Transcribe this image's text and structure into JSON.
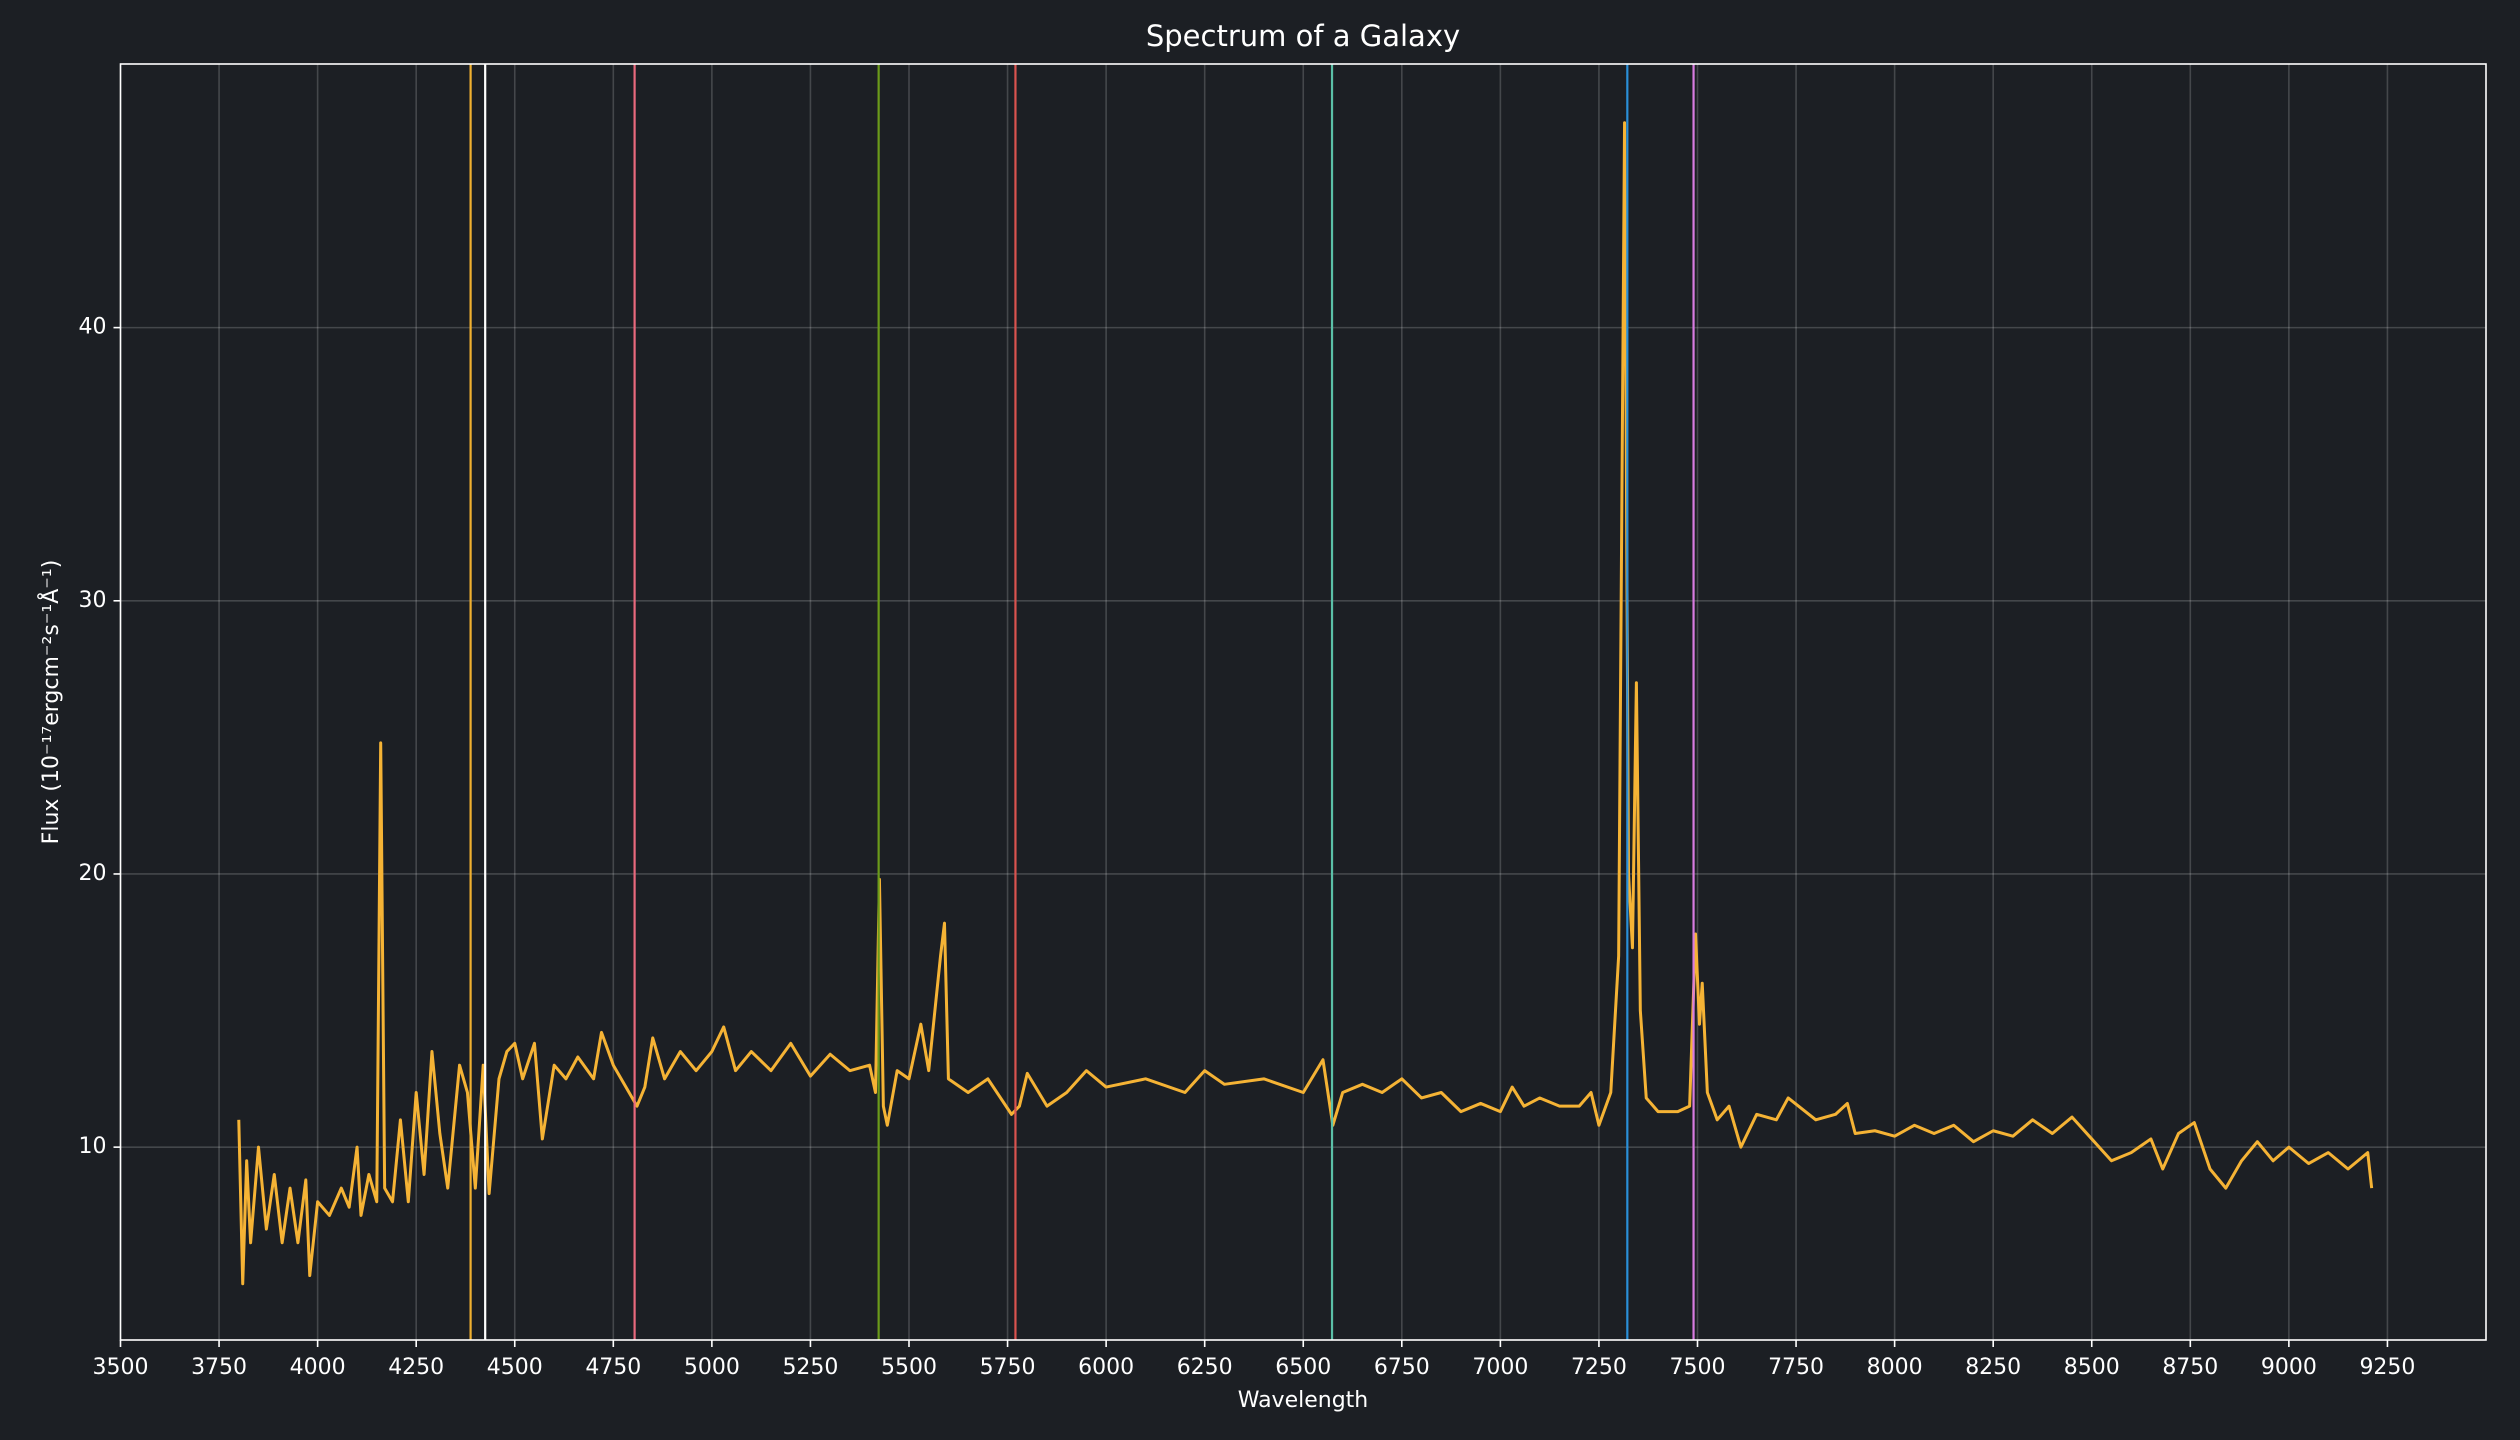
{
  "chart_data": {
    "type": "line",
    "title": "Spectrum of a Galaxy",
    "x_label": "Wavelength",
    "y_label": "Flux (10⁻¹⁷ergcm⁻²s⁻¹Å⁻¹)",
    "xlim": [
      3500,
      9500
    ],
    "ylim": [
      2.94,
      49.65
    ],
    "xticks": [
      3500,
      3750,
      4000,
      4250,
      4500,
      4750,
      5000,
      5250,
      5500,
      5750,
      6000,
      6250,
      6500,
      6750,
      7000,
      7250,
      7500,
      7750,
      8000,
      8250,
      8500,
      8750,
      9000,
      9250
    ],
    "yticks": [
      10,
      20,
      30,
      40
    ],
    "grid": true,
    "x": [
      3800,
      3810,
      3820,
      3830,
      3850,
      3870,
      3890,
      3910,
      3930,
      3950,
      3970,
      3980,
      4000,
      4030,
      4060,
      4080,
      4100,
      4110,
      4130,
      4150,
      4160,
      4170,
      4190,
      4210,
      4230,
      4250,
      4270,
      4290,
      4310,
      4330,
      4360,
      4380,
      4400,
      4420,
      4435,
      4460,
      4480,
      4500,
      4520,
      4550,
      4570,
      4600,
      4630,
      4660,
      4700,
      4720,
      4750,
      4790,
      4810,
      4830,
      4850,
      4880,
      4920,
      4960,
      5000,
      5030,
      5060,
      5100,
      5150,
      5200,
      5250,
      5300,
      5350,
      5400,
      5415,
      5425,
      5435,
      5445,
      5470,
      5500,
      5530,
      5550,
      5580,
      5590,
      5600,
      5650,
      5700,
      5760,
      5780,
      5800,
      5850,
      5900,
      5950,
      6000,
      6100,
      6200,
      6250,
      6300,
      6400,
      6500,
      6550,
      6575,
      6600,
      6650,
      6700,
      6750,
      6800,
      6850,
      6900,
      6950,
      7000,
      7030,
      7060,
      7100,
      7150,
      7200,
      7230,
      7250,
      7280,
      7300,
      7315,
      7325,
      7335,
      7345,
      7355,
      7370,
      7400,
      7450,
      7480,
      7495,
      7505,
      7512,
      7525,
      7550,
      7580,
      7610,
      7650,
      7700,
      7730,
      7800,
      7850,
      7880,
      7900,
      7950,
      8000,
      8050,
      8100,
      8150,
      8200,
      8250,
      8300,
      8350,
      8400,
      8450,
      8500,
      8550,
      8600,
      8650,
      8680,
      8720,
      8760,
      8800,
      8840,
      8880,
      8920,
      8960,
      9000,
      9050,
      9100,
      9150,
      9200,
      9210
    ],
    "series": [
      {
        "color": "#f5b335",
        "values": [
          11.0,
          5.0,
          9.5,
          6.5,
          10.0,
          7.0,
          9.0,
          6.5,
          8.5,
          6.5,
          8.8,
          5.3,
          8.0,
          7.5,
          8.5,
          7.8,
          10.0,
          7.5,
          9.0,
          8.0,
          24.8,
          8.5,
          8.0,
          11.0,
          8.0,
          12.0,
          9.0,
          13.5,
          10.5,
          8.5,
          13.0,
          12.0,
          8.5,
          13.0,
          8.3,
          12.5,
          13.5,
          13.8,
          12.5,
          13.8,
          10.3,
          13.0,
          12.5,
          13.3,
          12.5,
          14.2,
          13.0,
          12.0,
          11.5,
          12.2,
          14.0,
          12.5,
          13.5,
          12.8,
          13.5,
          14.4,
          12.8,
          13.5,
          12.8,
          13.8,
          12.6,
          13.4,
          12.8,
          13.0,
          12.0,
          19.8,
          11.5,
          10.8,
          12.8,
          12.5,
          14.5,
          12.8,
          17.0,
          18.2,
          12.5,
          12.0,
          12.5,
          11.2,
          11.5,
          12.7,
          11.5,
          12.0,
          12.8,
          12.2,
          12.5,
          12.0,
          12.8,
          12.3,
          12.5,
          12.0,
          13.2,
          10.8,
          12.0,
          12.3,
          12.0,
          12.5,
          11.8,
          12.0,
          11.3,
          11.6,
          11.3,
          12.2,
          11.5,
          11.8,
          11.5,
          11.5,
          12.0,
          10.8,
          12.0,
          17.0,
          47.5,
          20.0,
          17.3,
          27.0,
          15.0,
          11.8,
          11.3,
          11.3,
          11.5,
          17.8,
          14.5,
          16.0,
          12.0,
          11.0,
          11.5,
          10.0,
          11.2,
          11.0,
          11.8,
          11.0,
          11.2,
          11.6,
          10.5,
          10.6,
          10.4,
          10.8,
          10.5,
          10.8,
          10.2,
          10.6,
          10.4,
          11.0,
          10.5,
          11.1,
          10.3,
          9.5,
          9.8,
          10.3,
          9.2,
          10.5,
          10.9,
          9.2,
          8.5,
          9.5,
          10.2,
          9.5,
          10.0,
          9.4,
          9.8,
          9.2,
          9.8,
          8.5
        ]
      }
    ],
    "vlines": [
      {
        "x": 4388,
        "color": "#f0b030"
      },
      {
        "x": 4425,
        "color": "#ffffff"
      },
      {
        "x": 4804,
        "color": "#e8697d"
      },
      {
        "x": 5423,
        "color": "#6a9a1a"
      },
      {
        "x": 5770,
        "color": "#d9534f"
      },
      {
        "x": 6573,
        "color": "#5bc0a8"
      },
      {
        "x": 7322,
        "color": "#2a8fd8"
      },
      {
        "x": 7490,
        "color": "#d77be0"
      }
    ]
  }
}
